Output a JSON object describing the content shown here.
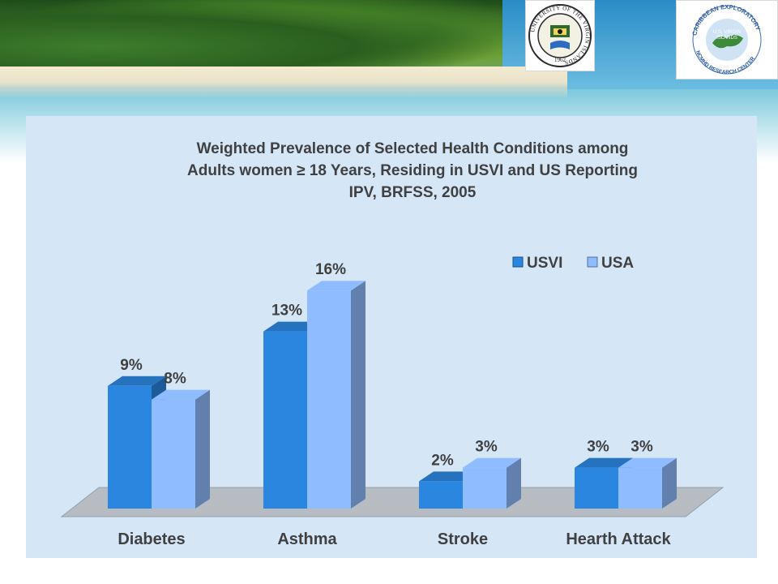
{
  "logos": {
    "university": {
      "ring_text": "UNIVERSITY OF THE VIRGIN ISLANDS",
      "year": "1962"
    },
    "research_center": {
      "ring_text": "CARIBBEAN EXPLORATORY",
      "ring_text_bottom": "NCMHD RESEARCH CENTER",
      "center_text_1": "U.S. VIRGIN",
      "center_text_2": "ISLANDS"
    }
  },
  "colors": {
    "usvi": "#2b86e0",
    "usa": "#8ebcff",
    "panel": "#d5e6f7",
    "floor": "#b7bcc3",
    "text": "#404040"
  },
  "chart_data": {
    "type": "bar",
    "title_lines": [
      "Weighted Prevalence of Selected Health Conditions among",
      "Adults  women ≥ 18 Years, Residing in USVI and US Reporting",
      "IPV, BRFSS, 2005"
    ],
    "categories": [
      "Diabetes",
      "Asthma",
      "Stroke",
      "Hearth Attack"
    ],
    "series": [
      {
        "name": "USVI",
        "values": [
          9,
          13,
          2,
          3
        ],
        "labels": [
          "9%",
          "13%",
          "2%",
          "3%"
        ]
      },
      {
        "name": "USA",
        "values": [
          8,
          16,
          3,
          3
        ],
        "labels": [
          "8%",
          "16%",
          "3%",
          "3%"
        ]
      }
    ],
    "ylim": [
      0,
      20
    ],
    "grid": false,
    "legend_position": "top-right",
    "three_d": true
  }
}
